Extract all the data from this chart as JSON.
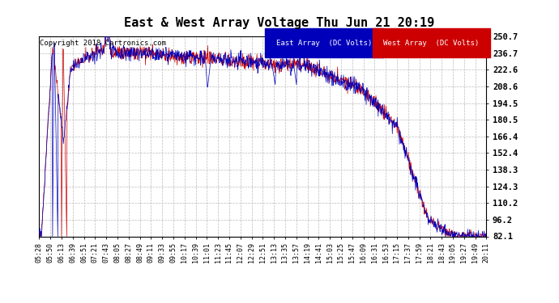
{
  "title": "East & West Array Voltage Thu Jun 21 20:19",
  "copyright": "Copyright 2018 Cartronics.com",
  "legend_east": "East Array  (DC Volts)",
  "legend_west": "West Array  (DC Volts)",
  "east_color": "#0000bb",
  "west_color": "#cc0000",
  "ylim": [
    82.1,
    250.7
  ],
  "yticks": [
    250.7,
    236.7,
    222.6,
    208.6,
    194.5,
    180.5,
    166.4,
    152.4,
    138.3,
    124.3,
    110.2,
    96.2,
    82.1
  ],
  "bg_color": "#ffffff",
  "grid_color": "#bbbbbb",
  "title_fontsize": 11,
  "copyright_fontsize": 6.5,
  "tick_fontsize": 6,
  "ytick_fontsize": 7.5,
  "x_tick_labels": [
    "05:28",
    "05:50",
    "06:13",
    "06:39",
    "06:51",
    "07:21",
    "07:43",
    "08:05",
    "08:27",
    "08:49",
    "09:11",
    "09:33",
    "09:55",
    "10:17",
    "10:39",
    "11:01",
    "11:23",
    "11:45",
    "12:07",
    "12:29",
    "12:51",
    "13:13",
    "13:35",
    "13:57",
    "14:19",
    "14:41",
    "15:03",
    "15:25",
    "15:47",
    "16:09",
    "16:31",
    "16:53",
    "17:15",
    "17:37",
    "17:59",
    "18:21",
    "18:43",
    "19:05",
    "19:27",
    "19:49",
    "20:11"
  ]
}
